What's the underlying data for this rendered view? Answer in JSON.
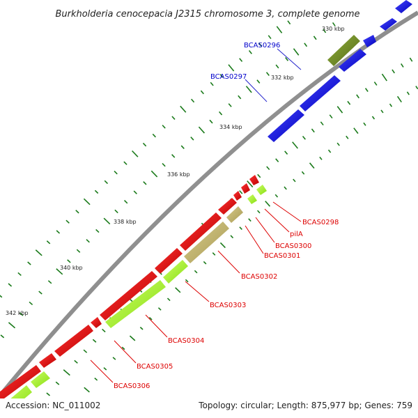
{
  "title": "Burkholderia cenocepacia J2315 chromosome 3, complete genome",
  "footer": {
    "accession": "Accession: NC_011002",
    "stats": "Topology: circular; Length: 875,977 bp; Genes: 759"
  },
  "ticks": [
    {
      "label": "330 kbp"
    },
    {
      "label": "332 kbp"
    },
    {
      "label": "334 kbp"
    },
    {
      "label": "336 kbp"
    },
    {
      "label": "338 kbp"
    },
    {
      "label": "340 kbp"
    },
    {
      "label": "342 kbp"
    }
  ],
  "colors": {
    "backbone": "#8c8c8c",
    "forward_cds": "#0000ee",
    "reverse_cds": "#ee0000",
    "orthology_bright": "#99ee22",
    "orthology_olive": "#6b8e23",
    "orthology_tan": "#bdb76b",
    "tick": "#1a7a1a"
  },
  "gene_labels": [
    {
      "name": "BCAS0296",
      "strand": "forward"
    },
    {
      "name": "BCAS0297",
      "strand": "forward"
    },
    {
      "name": "BCAS0298",
      "strand": "reverse"
    },
    {
      "name": "pilA",
      "strand": "reverse"
    },
    {
      "name": "BCAS0300",
      "strand": "reverse"
    },
    {
      "name": "BCAS0301",
      "strand": "reverse"
    },
    {
      "name": "BCAS0302",
      "strand": "reverse"
    },
    {
      "name": "BCAS0303",
      "strand": "reverse"
    },
    {
      "name": "BCAS0304",
      "strand": "reverse"
    },
    {
      "name": "BCAS0305",
      "strand": "reverse"
    },
    {
      "name": "BCAS0306",
      "strand": "reverse"
    }
  ]
}
